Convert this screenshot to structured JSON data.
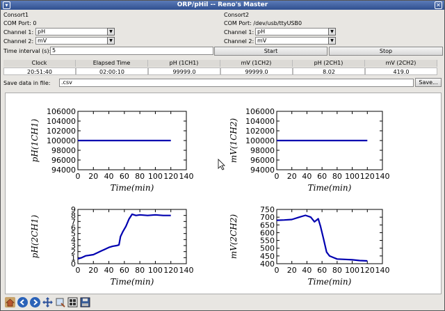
{
  "window": {
    "title": "ORP/pHil -- Reno's Master"
  },
  "consort1": {
    "name": "Consort1",
    "com_port": "COM Port: 0",
    "ch1_label": "Channel 1:",
    "ch1_value": "pH",
    "ch2_label": "Channel 2:",
    "ch2_value": "mV"
  },
  "consort2": {
    "name": "Consort2",
    "com_port": "COM Port: /dev/usb/ttyUSB0",
    "ch1_label": "Channel 1:",
    "ch1_value": "pH",
    "ch2_label": "Channel 2:",
    "ch2_value": "mV"
  },
  "interval": {
    "label": "Time interval (s):",
    "value": "5"
  },
  "buttons": {
    "start": "Start",
    "stop": "Stop",
    "save": "Save..."
  },
  "readout": {
    "headers": [
      "Clock",
      "Elapsed Time",
      "pH (1CH1)",
      "mV (1CH2)",
      "pH (2CH1)",
      "mV (2CH2)"
    ],
    "values": [
      "20:51:40",
      "02:00:10",
      "99999.0",
      "99999.0",
      "8.02",
      "419.0"
    ]
  },
  "save": {
    "label": "Save data in file:",
    "value": ".csv"
  },
  "colors": {
    "line": "#0000b0",
    "titlebar": "#3f5f9f"
  },
  "toolbar_icons": [
    "home-icon",
    "back-icon",
    "forward-icon",
    "pan-icon",
    "zoom-icon",
    "subplots-icon",
    "save-figure-icon"
  ],
  "chart_data": [
    {
      "type": "line",
      "ylabel": "pH(1CH1)",
      "xlabel": "Time(min)",
      "xlim": [
        0,
        140
      ],
      "ylim": [
        94000,
        106000
      ],
      "xticks": [
        "0",
        "20",
        "40",
        "60",
        "80",
        "100",
        "120",
        "140"
      ],
      "yticks": [
        "94000",
        "96000",
        "98000",
        "100000",
        "102000",
        "104000",
        "106000"
      ],
      "x": [
        0,
        120
      ],
      "y": [
        100000,
        100000
      ]
    },
    {
      "type": "line",
      "ylabel": "mV(1CH2)",
      "xlabel": "Time(min)",
      "xlim": [
        0,
        140
      ],
      "ylim": [
        94000,
        106000
      ],
      "xticks": [
        "0",
        "20",
        "40",
        "60",
        "80",
        "100",
        "120",
        "140"
      ],
      "yticks": [
        "94000",
        "96000",
        "98000",
        "100000",
        "102000",
        "104000",
        "106000"
      ],
      "x": [
        0,
        120
      ],
      "y": [
        100000,
        100000
      ]
    },
    {
      "type": "line",
      "ylabel": "pH(2CH1)",
      "xlabel": "Time(min)",
      "xlim": [
        0,
        140
      ],
      "ylim": [
        0,
        9
      ],
      "xticks": [
        "0",
        "20",
        "40",
        "60",
        "80",
        "100",
        "120",
        "140"
      ],
      "yticks": [
        "0",
        "1",
        "2",
        "3",
        "4",
        "5",
        "6",
        "7",
        "8",
        "9"
      ],
      "x": [
        0,
        5,
        10,
        15,
        20,
        25,
        30,
        35,
        40,
        45,
        50,
        53,
        55,
        58,
        62,
        66,
        70,
        75,
        80,
        90,
        100,
        110,
        120
      ],
      "y": [
        0.8,
        1.0,
        1.3,
        1.4,
        1.5,
        1.8,
        2.1,
        2.4,
        2.7,
        2.9,
        3.0,
        3.1,
        4.5,
        5.3,
        6.2,
        7.4,
        8.2,
        8.0,
        8.1,
        8.0,
        8.1,
        8.0,
        8.0
      ]
    },
    {
      "type": "line",
      "ylabel": "mV(2CH2)",
      "xlabel": "Time(min)",
      "xlim": [
        0,
        140
      ],
      "ylim": [
        400,
        750
      ],
      "xticks": [
        "0",
        "20",
        "40",
        "60",
        "80",
        "100",
        "120",
        "140"
      ],
      "yticks": [
        "400",
        "450",
        "500",
        "550",
        "600",
        "650",
        "700",
        "750"
      ],
      "x": [
        0,
        10,
        20,
        30,
        38,
        45,
        50,
        55,
        58,
        62,
        66,
        70,
        75,
        80,
        90,
        100,
        110,
        120
      ],
      "y": [
        680,
        682,
        685,
        700,
        712,
        700,
        670,
        690,
        640,
        560,
        475,
        450,
        440,
        430,
        428,
        425,
        420,
        418
      ]
    }
  ]
}
